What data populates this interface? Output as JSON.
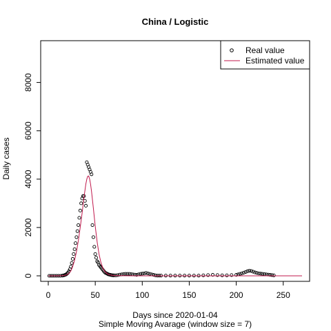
{
  "chart_data": {
    "type": "scatter",
    "title": "China / Logistic",
    "xlabel": "Days since 2020-01-04",
    "ylabel": "Daily cases",
    "subtitle": "Simple Moving Avarage (window size = 7)",
    "xlim": [
      0,
      270
    ],
    "ylim": [
      0,
      9500
    ],
    "xticks": [
      0,
      50,
      100,
      150,
      200,
      250
    ],
    "yticks": [
      0,
      2000,
      4000,
      6000,
      8000
    ],
    "legend": {
      "position": "top-right",
      "entries": [
        {
          "label": "Real value",
          "kind": "point"
        },
        {
          "label": "Estimated value",
          "kind": "line"
        }
      ]
    },
    "series": [
      {
        "name": "Real value",
        "kind": "points",
        "color": "#000000",
        "x": [
          1,
          3,
          5,
          7,
          9,
          11,
          13,
          15,
          16,
          17,
          18,
          19,
          20,
          21,
          22,
          23,
          24,
          25,
          26,
          27,
          28,
          29,
          30,
          31,
          32,
          33,
          34,
          35,
          36,
          37,
          38,
          39,
          40,
          41,
          42,
          43,
          44,
          45,
          46,
          47,
          48,
          49,
          50,
          51,
          52,
          53,
          54,
          55,
          56,
          57,
          58,
          59,
          60,
          61,
          62,
          63,
          64,
          65,
          66,
          67,
          68,
          69,
          70,
          72,
          74,
          76,
          78,
          80,
          82,
          84,
          86,
          88,
          90,
          92,
          94,
          96,
          98,
          100,
          102,
          104,
          106,
          108,
          110,
          112,
          114,
          116,
          118,
          120,
          125,
          130,
          135,
          140,
          145,
          150,
          155,
          160,
          165,
          170,
          175,
          180,
          185,
          190,
          195,
          200,
          202,
          204,
          206,
          208,
          210,
          212,
          214,
          216,
          218,
          220,
          222,
          224,
          226,
          228,
          230,
          232,
          234,
          236,
          238,
          240
        ],
        "y": [
          0,
          0,
          0,
          0,
          0,
          0,
          0,
          10,
          15,
          25,
          40,
          60,
          90,
          130,
          190,
          270,
          380,
          530,
          700,
          900,
          1100,
          1350,
          1600,
          1850,
          2100,
          2400,
          2700,
          3000,
          3200,
          3300,
          3300,
          3100,
          2900,
          4700,
          4600,
          4500,
          4400,
          4300,
          4200,
          2100,
          1600,
          1200,
          900,
          750,
          600,
          550,
          450,
          400,
          350,
          300,
          250,
          200,
          150,
          120,
          100,
          80,
          60,
          50,
          40,
          30,
          25,
          20,
          20,
          20,
          30,
          50,
          60,
          70,
          80,
          80,
          80,
          70,
          60,
          50,
          40,
          60,
          80,
          90,
          100,
          120,
          100,
          80,
          60,
          40,
          20,
          10,
          10,
          10,
          10,
          10,
          10,
          10,
          10,
          10,
          10,
          10,
          20,
          30,
          40,
          30,
          20,
          20,
          30,
          40,
          60,
          80,
          100,
          130,
          160,
          190,
          210,
          200,
          170,
          140,
          120,
          100,
          90,
          80,
          70,
          60,
          50,
          40,
          30,
          20
        ]
      },
      {
        "name": "Estimated value",
        "kind": "line",
        "color": "#c0174b",
        "x": [
          0,
          10,
          15,
          18,
          20,
          22,
          24,
          26,
          28,
          30,
          32,
          34,
          36,
          38,
          40,
          41,
          42,
          43,
          44,
          45,
          46,
          48,
          50,
          52,
          54,
          56,
          58,
          60,
          62,
          64,
          66,
          68,
          70,
          75,
          80,
          90,
          100,
          120,
          150,
          200,
          250,
          270
        ],
        "y": [
          0,
          0,
          5,
          20,
          50,
          100,
          200,
          380,
          650,
          1000,
          1450,
          2000,
          2600,
          3250,
          3800,
          4000,
          4120,
          4130,
          4000,
          3800,
          3500,
          2800,
          2050,
          1400,
          900,
          560,
          330,
          190,
          110,
          60,
          35,
          20,
          10,
          5,
          2,
          0,
          0,
          0,
          0,
          0,
          0,
          0
        ]
      }
    ]
  }
}
